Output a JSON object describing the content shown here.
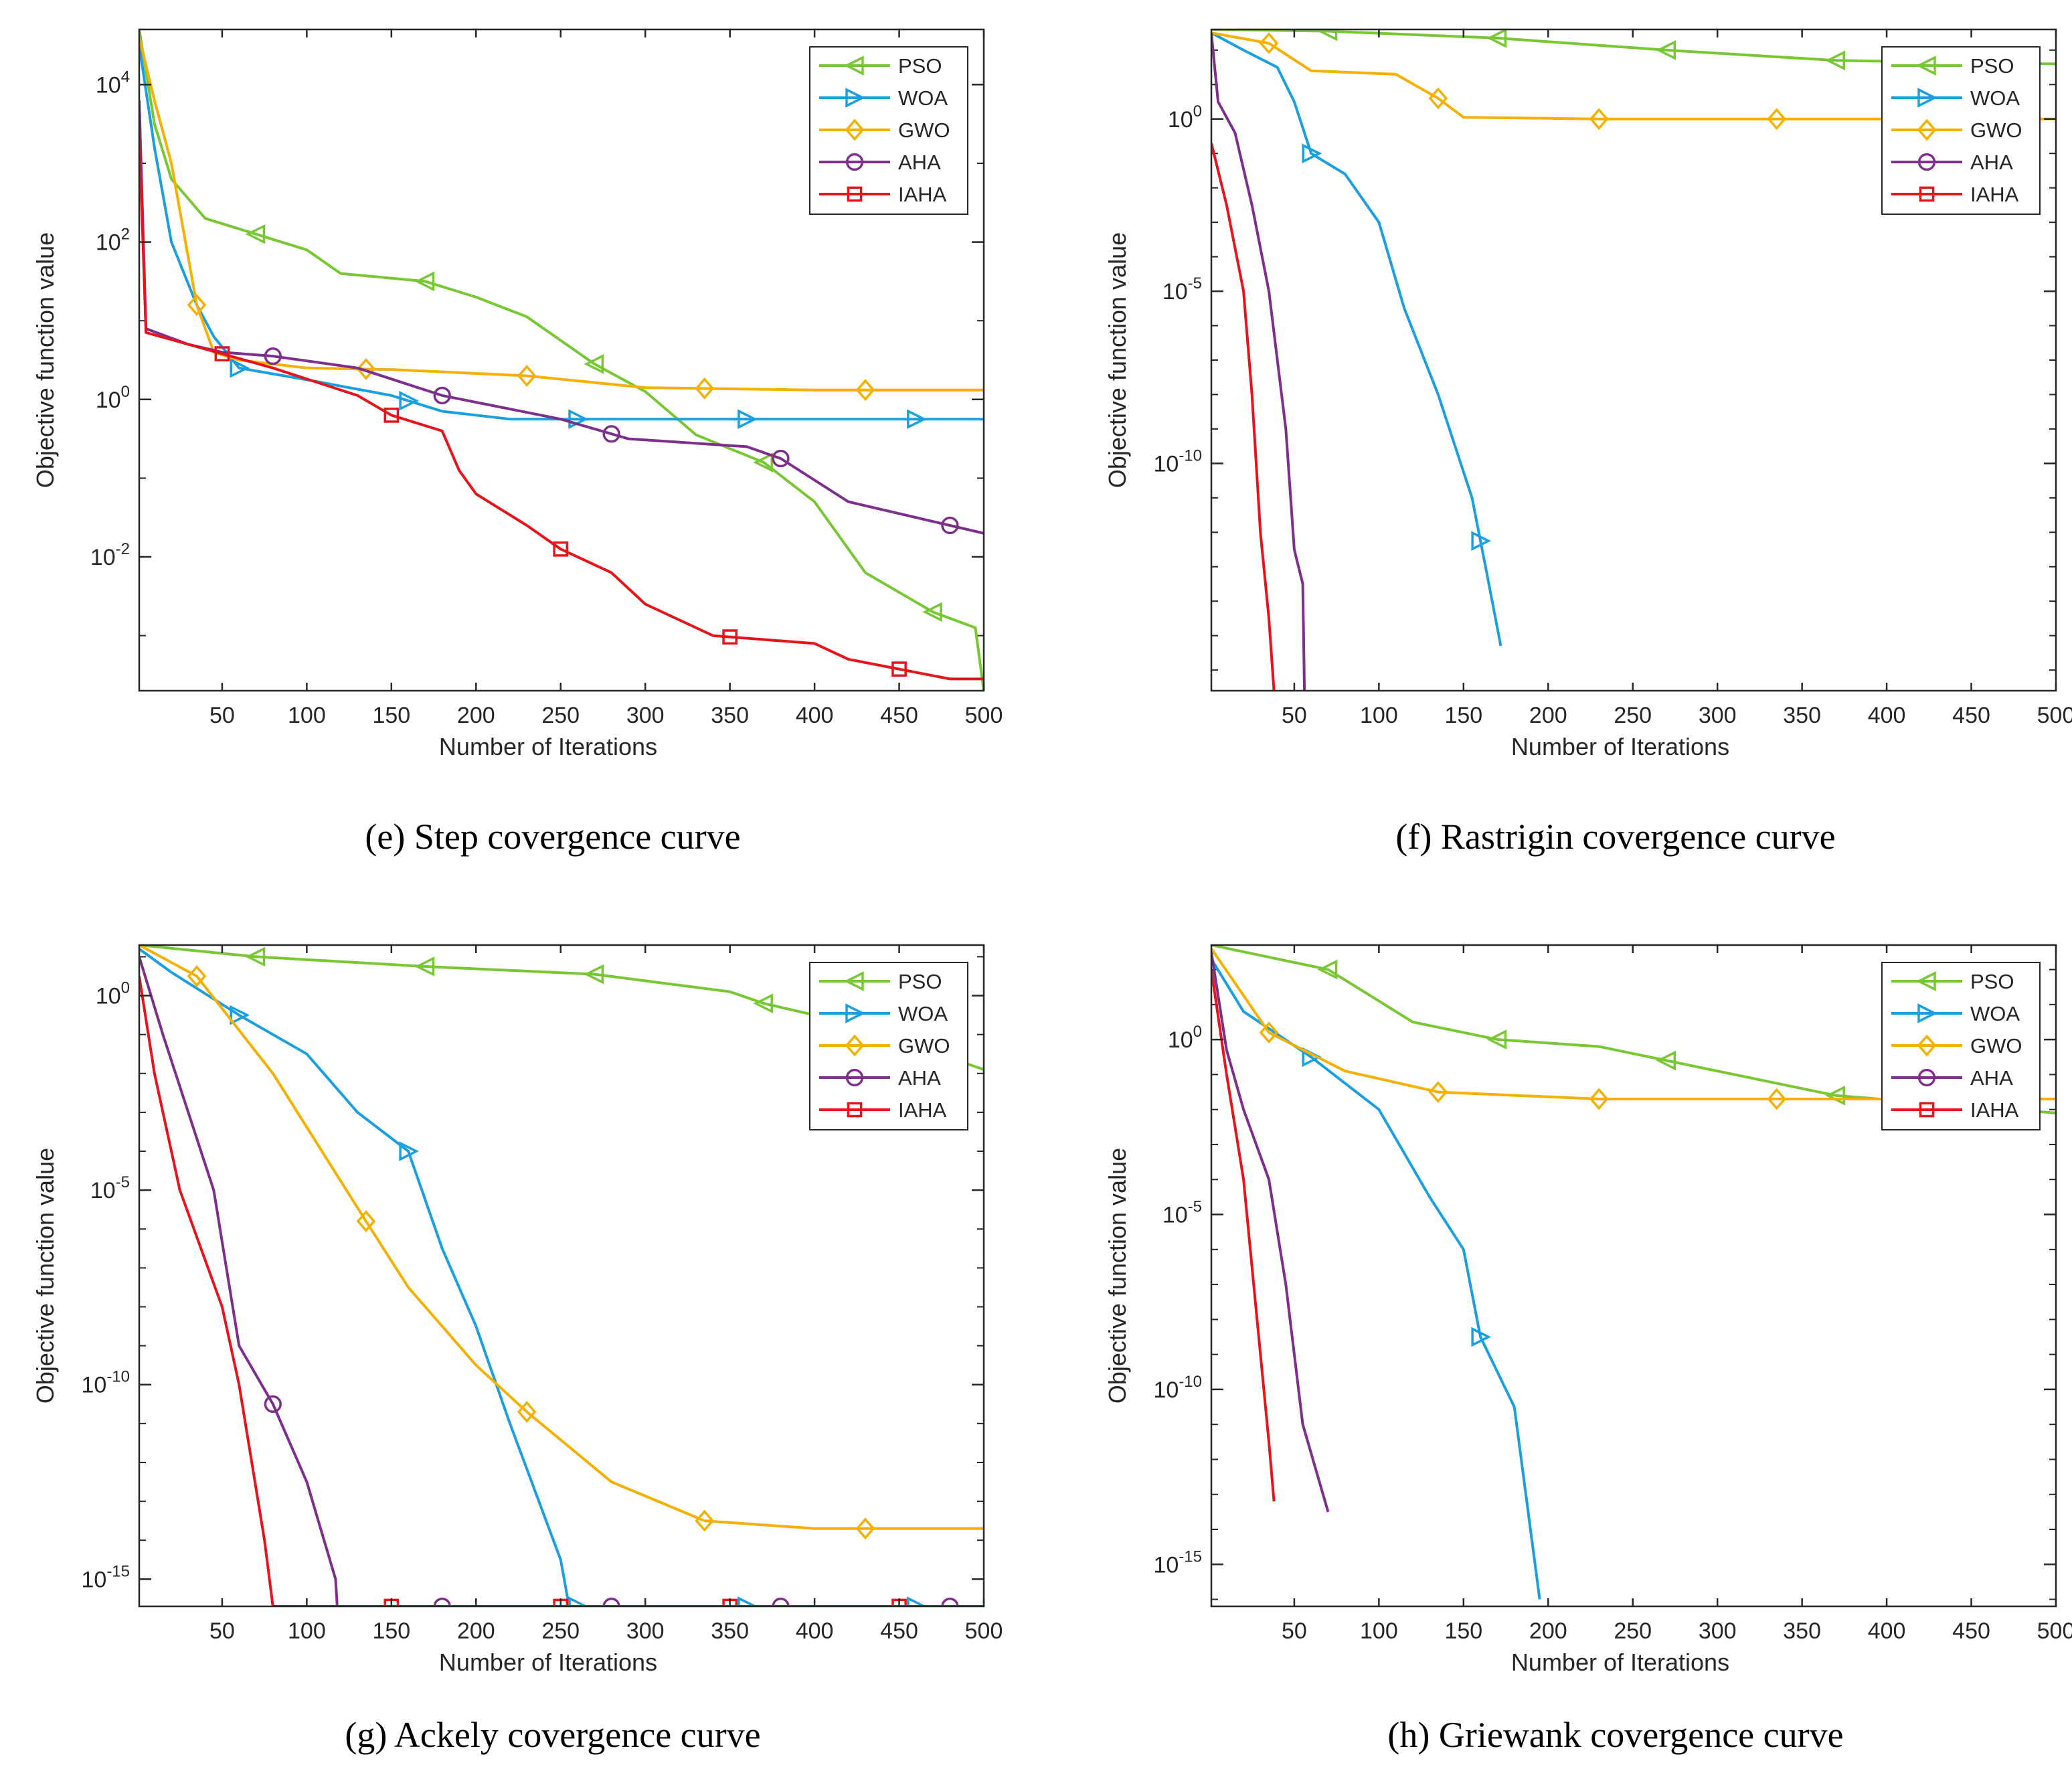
{
  "colors": {
    "PSO": "#77c832",
    "WOA": "#1a9fe0",
    "GWO": "#f5b000",
    "AHA": "#7e2f8e",
    "IAHA": "#e8141b",
    "axis": "#262626"
  },
  "markers": {
    "PSO": "triangle-left",
    "WOA": "triangle-right",
    "GWO": "diamond",
    "AHA": "circle",
    "IAHA": "square"
  },
  "chart_data": [
    {
      "type": "line",
      "yscale": "log",
      "caption": "(e) Step covergence curve",
      "xlabel": "Number of Iterations",
      "ylabel": "Objective function value",
      "xlim": [
        1,
        500
      ],
      "xticks": [
        50,
        100,
        150,
        200,
        250,
        300,
        350,
        400,
        450,
        500
      ],
      "ylim_log10": [
        -3.7,
        4.7
      ],
      "yticks_exp": [
        "4",
        "2",
        "0",
        "-2"
      ],
      "legend": [
        "PSO",
        "WOA",
        "GWO",
        "AHA",
        "IAHA"
      ],
      "legend_position": "top-right",
      "series": [
        {
          "name": "PSO",
          "points": [
            [
              1,
              4.7
            ],
            [
              10,
              3.5
            ],
            [
              20,
              2.8
            ],
            [
              40,
              2.3
            ],
            [
              70,
              2.1
            ],
            [
              100,
              1.9
            ],
            [
              120,
              1.6
            ],
            [
              170,
              1.5
            ],
            [
              200,
              1.3
            ],
            [
              230,
              1.05
            ],
            [
              270,
              0.45
            ],
            [
              300,
              0.1
            ],
            [
              330,
              -0.45
            ],
            [
              370,
              -0.8
            ],
            [
              400,
              -1.3
            ],
            [
              430,
              -2.2
            ],
            [
              470,
              -2.7
            ],
            [
              495,
              -2.9
            ],
            [
              500,
              -3.7
            ]
          ],
          "markers_x": [
            70,
            170,
            270,
            370,
            470
          ]
        },
        {
          "name": "WOA",
          "points": [
            [
              1,
              4.5
            ],
            [
              10,
              3.2
            ],
            [
              20,
              2.0
            ],
            [
              35,
              1.2
            ],
            [
              45,
              0.8
            ],
            [
              60,
              0.4
            ],
            [
              100,
              0.25
            ],
            [
              150,
              0.05
            ],
            [
              180,
              -0.15
            ],
            [
              220,
              -0.25
            ],
            [
              500,
              -0.25
            ]
          ],
          "markers_x": [
            60,
            160,
            260,
            360,
            460
          ]
        },
        {
          "name": "GWO",
          "points": [
            [
              1,
              4.6
            ],
            [
              10,
              3.8
            ],
            [
              20,
              3.0
            ],
            [
              35,
              1.2
            ],
            [
              45,
              0.6
            ],
            [
              60,
              0.5
            ],
            [
              100,
              0.4
            ],
            [
              150,
              0.38
            ],
            [
              230,
              0.3
            ],
            [
              300,
              0.15
            ],
            [
              400,
              0.12
            ],
            [
              500,
              0.12
            ]
          ],
          "markers_x": [
            35,
            135,
            230,
            335,
            430
          ]
        },
        {
          "name": "AHA",
          "points": [
            [
              1,
              3.8
            ],
            [
              5,
              0.9
            ],
            [
              30,
              0.7
            ],
            [
              50,
              0.6
            ],
            [
              80,
              0.55
            ],
            [
              130,
              0.4
            ],
            [
              180,
              0.05
            ],
            [
              250,
              -0.25
            ],
            [
              290,
              -0.5
            ],
            [
              360,
              -0.6
            ],
            [
              380,
              -0.75
            ],
            [
              420,
              -1.3
            ],
            [
              480,
              -1.6
            ],
            [
              500,
              -1.7
            ]
          ],
          "markers_x": [
            80,
            180,
            280,
            380,
            480
          ]
        },
        {
          "name": "IAHA",
          "points": [
            [
              1,
              3.4
            ],
            [
              5,
              0.85
            ],
            [
              30,
              0.7
            ],
            [
              50,
              0.58
            ],
            [
              80,
              0.4
            ],
            [
              130,
              0.05
            ],
            [
              150,
              -0.2
            ],
            [
              180,
              -0.4
            ],
            [
              190,
              -0.9
            ],
            [
              200,
              -1.2
            ],
            [
              230,
              -1.6
            ],
            [
              250,
              -1.9
            ],
            [
              280,
              -2.2
            ],
            [
              300,
              -2.6
            ],
            [
              340,
              -3.0
            ],
            [
              400,
              -3.1
            ],
            [
              420,
              -3.3
            ],
            [
              480,
              -3.55
            ],
            [
              500,
              -3.55
            ]
          ],
          "markers_x": [
            50,
            150,
            250,
            350,
            450
          ]
        }
      ]
    },
    {
      "type": "line",
      "yscale": "log",
      "caption": "(f) Rastrigin covergence curve",
      "xlabel": "Number of Iterations",
      "ylabel": "Objective function value",
      "xlim": [
        1,
        500
      ],
      "xticks": [
        50,
        100,
        150,
        200,
        250,
        300,
        350,
        400,
        450,
        500
      ],
      "ylim_log10": [
        -16.6,
        2.6
      ],
      "yticks_exp": [
        "0",
        "-5",
        "-10"
      ],
      "legend": [
        "PSO",
        "WOA",
        "GWO",
        "AHA",
        "IAHA"
      ],
      "legend_position": "top-right",
      "series": [
        {
          "name": "PSO",
          "points": [
            [
              1,
              2.6
            ],
            [
              70,
              2.55
            ],
            [
              170,
              2.35
            ],
            [
              270,
              2.0
            ],
            [
              370,
              1.7
            ],
            [
              500,
              1.6
            ]
          ],
          "markers_x": [
            70,
            170,
            270,
            370
          ]
        },
        {
          "name": "WOA",
          "points": [
            [
              1,
              2.5
            ],
            [
              20,
              2.0
            ],
            [
              40,
              1.5
            ],
            [
              50,
              0.5
            ],
            [
              60,
              -1.0
            ],
            [
              80,
              -1.6
            ],
            [
              100,
              -3.0
            ],
            [
              115,
              -5.5
            ],
            [
              135,
              -8.0
            ],
            [
              155,
              -11.0
            ],
            [
              163,
              -13.0
            ],
            [
              172,
              -15.3
            ]
          ],
          "markers_x": [
            60,
            160
          ]
        },
        {
          "name": "GWO",
          "points": [
            [
              1,
              2.5
            ],
            [
              35,
              2.2
            ],
            [
              60,
              1.4
            ],
            [
              110,
              1.3
            ],
            [
              135,
              0.6
            ],
            [
              150,
              0.05
            ],
            [
              230,
              0.0
            ],
            [
              500,
              0.0
            ]
          ],
          "markers_x": [
            35,
            135,
            230,
            335
          ]
        },
        {
          "name": "AHA",
          "points": [
            [
              1,
              2.5
            ],
            [
              5,
              0.5
            ],
            [
              15,
              -0.4
            ],
            [
              25,
              -2.5
            ],
            [
              35,
              -5.0
            ],
            [
              45,
              -9.0
            ],
            [
              50,
              -12.5
            ],
            [
              55,
              -13.5
            ],
            [
              56,
              -16.6
            ]
          ],
          "markers_x": []
        },
        {
          "name": "IAHA",
          "points": [
            [
              1,
              -0.7
            ],
            [
              10,
              -2.5
            ],
            [
              20,
              -5.0
            ],
            [
              25,
              -8.0
            ],
            [
              30,
              -12.0
            ],
            [
              35,
              -14.5
            ],
            [
              38,
              -16.6
            ]
          ],
          "markers_x": []
        }
      ]
    },
    {
      "type": "line",
      "yscale": "log",
      "caption": "(g) Ackely covergence curve",
      "xlabel": "Number of Iterations",
      "ylabel": "Objective function value",
      "xlim": [
        1,
        500
      ],
      "xticks": [
        50,
        100,
        150,
        200,
        250,
        300,
        350,
        400,
        450,
        500
      ],
      "ylim_log10": [
        -15.7,
        1.3
      ],
      "yticks_exp": [
        "0",
        "-5",
        "-10",
        "-15"
      ],
      "legend": [
        "PSO",
        "WOA",
        "GWO",
        "AHA",
        "IAHA"
      ],
      "legend_position": "top-right",
      "series": [
        {
          "name": "PSO",
          "points": [
            [
              1,
              1.3
            ],
            [
              70,
              1.0
            ],
            [
              170,
              0.75
            ],
            [
              270,
              0.55
            ],
            [
              350,
              0.1
            ],
            [
              370,
              -0.2
            ],
            [
              420,
              -0.7
            ],
            [
              500,
              -1.9
            ]
          ],
          "markers_x": [
            70,
            170,
            270,
            370
          ]
        },
        {
          "name": "WOA",
          "points": [
            [
              1,
              1.2
            ],
            [
              20,
              0.6
            ],
            [
              60,
              -0.5
            ],
            [
              100,
              -1.5
            ],
            [
              130,
              -3.0
            ],
            [
              160,
              -4.0
            ],
            [
              180,
              -6.5
            ],
            [
              200,
              -8.5
            ],
            [
              220,
              -11.0
            ],
            [
              250,
              -14.5
            ],
            [
              255,
              -15.7
            ],
            [
              500,
              -15.7
            ]
          ],
          "markers_x": [
            60,
            160,
            260,
            360,
            460
          ]
        },
        {
          "name": "GWO",
          "points": [
            [
              1,
              1.3
            ],
            [
              35,
              0.5
            ],
            [
              80,
              -2.0
            ],
            [
              135,
              -5.8
            ],
            [
              160,
              -7.5
            ],
            [
              200,
              -9.5
            ],
            [
              230,
              -10.7
            ],
            [
              280,
              -12.5
            ],
            [
              335,
              -13.5
            ],
            [
              400,
              -13.7
            ],
            [
              500,
              -13.7
            ]
          ],
          "markers_x": [
            35,
            135,
            230,
            335,
            430
          ]
        },
        {
          "name": "AHA",
          "points": [
            [
              1,
              1.0
            ],
            [
              15,
              -1.0
            ],
            [
              30,
              -3.0
            ],
            [
              45,
              -5.0
            ],
            [
              60,
              -9.0
            ],
            [
              80,
              -10.5
            ],
            [
              100,
              -12.5
            ],
            [
              117,
              -15.0
            ],
            [
              118,
              -15.7
            ],
            [
              500,
              -15.7
            ]
          ],
          "markers_x": [
            80,
            180,
            280,
            380,
            480
          ]
        },
        {
          "name": "IAHA",
          "points": [
            [
              1,
              0.5
            ],
            [
              10,
              -2.0
            ],
            [
              25,
              -5.0
            ],
            [
              50,
              -8.0
            ],
            [
              60,
              -10.0
            ],
            [
              75,
              -14.0
            ],
            [
              80,
              -15.7
            ],
            [
              500,
              -15.7
            ]
          ],
          "markers_x": [
            150,
            250,
            350,
            450
          ]
        }
      ]
    },
    {
      "type": "line",
      "yscale": "log",
      "caption": "(h) Griewank covergence curve",
      "xlabel": "Number of Iterations",
      "ylabel": "Objective function value",
      "xlim": [
        1,
        500
      ],
      "xticks": [
        50,
        100,
        150,
        200,
        250,
        300,
        350,
        400,
        450,
        500
      ],
      "ylim_log10": [
        -16.2,
        2.7
      ],
      "yticks_exp": [
        "0",
        "-5",
        "-10",
        "-15"
      ],
      "legend": [
        "PSO",
        "WOA",
        "GWO",
        "AHA",
        "IAHA"
      ],
      "legend_position": "top-right",
      "series": [
        {
          "name": "PSO",
          "points": [
            [
              1,
              2.7
            ],
            [
              70,
              2.0
            ],
            [
              120,
              0.5
            ],
            [
              170,
              0.0
            ],
            [
              230,
              -0.2
            ],
            [
              270,
              -0.6
            ],
            [
              370,
              -1.6
            ],
            [
              500,
              -2.1
            ]
          ],
          "markers_x": [
            70,
            170,
            270,
            370
          ]
        },
        {
          "name": "WOA",
          "points": [
            [
              1,
              2.3
            ],
            [
              20,
              0.8
            ],
            [
              60,
              -0.5
            ],
            [
              100,
              -2.0
            ],
            [
              130,
              -4.5
            ],
            [
              150,
              -6.0
            ],
            [
              160,
              -8.5
            ],
            [
              180,
              -10.5
            ],
            [
              195,
              -16.0
            ]
          ],
          "markers_x": [
            60,
            160
          ]
        },
        {
          "name": "GWO",
          "points": [
            [
              1,
              2.6
            ],
            [
              35,
              0.2
            ],
            [
              80,
              -0.9
            ],
            [
              135,
              -1.5
            ],
            [
              230,
              -1.7
            ],
            [
              335,
              -1.7
            ],
            [
              500,
              -1.7
            ]
          ],
          "markers_x": [
            35,
            135,
            230,
            335
          ]
        },
        {
          "name": "AHA",
          "points": [
            [
              1,
              2.5
            ],
            [
              10,
              -0.3
            ],
            [
              20,
              -2.0
            ],
            [
              35,
              -4.0
            ],
            [
              45,
              -7.0
            ],
            [
              55,
              -11.0
            ],
            [
              70,
              -13.5
            ]
          ],
          "markers_x": []
        },
        {
          "name": "IAHA",
          "points": [
            [
              1,
              2.0
            ],
            [
              10,
              -1.0
            ],
            [
              20,
              -4.0
            ],
            [
              28,
              -8.0
            ],
            [
              35,
              -11.5
            ],
            [
              38,
              -13.2
            ]
          ],
          "markers_x": []
        }
      ]
    }
  ]
}
